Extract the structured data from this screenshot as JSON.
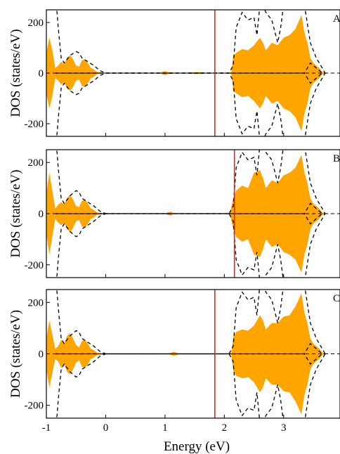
{
  "chart_data": {
    "type": "area",
    "xlabel": "Energy (eV)",
    "ylabel": "DOS (states/eV)",
    "xlim": [
      -1.0,
      3.95
    ],
    "ylim": [
      -250,
      250
    ],
    "x_ticks": [
      {
        "v": -1,
        "label": "-1"
      },
      {
        "v": 0,
        "label": "0"
      },
      {
        "v": 1,
        "label": "1"
      },
      {
        "v": 2,
        "label": "2"
      },
      {
        "v": 3,
        "label": "3"
      }
    ],
    "y_ticks": [
      {
        "v": 200,
        "label": "200"
      },
      {
        "v": 0,
        "label": "0"
      },
      {
        "v": -200,
        "label": "-200"
      }
    ],
    "colors": {
      "fill": "#ffa500",
      "dashed": "#000000",
      "fermi": "#d62728"
    },
    "panels": [
      {
        "label": "A",
        "fermi_level": 1.84,
        "dos_envelope": {
          "x": [
            -1.0,
            -0.95,
            -0.9,
            -0.85,
            -0.8,
            -0.75,
            -0.7,
            -0.65,
            -0.6,
            -0.55,
            -0.5,
            -0.45,
            -0.4,
            -0.35,
            -0.3,
            -0.25,
            -0.2,
            -0.15,
            -0.1,
            -0.05,
            0.0,
            0.9,
            0.95,
            1.0,
            1.05,
            1.2,
            1.5,
            1.6,
            1.7,
            2.08,
            2.12,
            2.15,
            2.2,
            2.3,
            2.4,
            2.5,
            2.6,
            2.65,
            2.7,
            2.8,
            2.9,
            3.0,
            3.1,
            3.2,
            3.3,
            3.35,
            3.4,
            3.45,
            3.5,
            3.55,
            3.6,
            3.65,
            3.7,
            3.95
          ],
          "y": [
            80,
            140,
            90,
            20,
            30,
            45,
            35,
            60,
            70,
            55,
            30,
            25,
            50,
            55,
            40,
            20,
            15,
            5,
            3,
            1,
            0,
            0,
            4,
            8,
            4,
            0,
            3,
            4,
            0,
            0,
            5,
            70,
            80,
            95,
            90,
            110,
            140,
            120,
            90,
            120,
            110,
            140,
            150,
            175,
            230,
            160,
            120,
            60,
            40,
            30,
            20,
            5,
            0,
            0
          ]
        },
        "dashed_curves": {
          "x": [
            -0.85,
            -0.82,
            -0.8,
            -0.75,
            -0.7,
            -0.6,
            -0.5,
            -0.45,
            -0.4,
            -0.3,
            -0.2,
            -0.1,
            0.0,
            2.08,
            2.15,
            2.2,
            2.3,
            2.4,
            2.5,
            2.55,
            2.6,
            2.65,
            2.7,
            2.8,
            2.9,
            2.95,
            3.0,
            3.1,
            3.2,
            3.3,
            3.35,
            3.45,
            3.55,
            3.6,
            3.65,
            3.7
          ],
          "outer": [
            270,
            240,
            180,
            60,
            40,
            70,
            85,
            80,
            60,
            45,
            30,
            10,
            0,
            0,
            30,
            180,
            240,
            210,
            220,
            150,
            270,
            270,
            240,
            210,
            120,
            180,
            270,
            270,
            270,
            270,
            270,
            120,
            60,
            40,
            20,
            0
          ],
          "inner": [
            0,
            0,
            0,
            0,
            0,
            0,
            0,
            0,
            0,
            0,
            0,
            0,
            0,
            0,
            0,
            0,
            0,
            0,
            0,
            0,
            0,
            0,
            0,
            0,
            0,
            0,
            0,
            0,
            0,
            0,
            0,
            40,
            20,
            10,
            0,
            0
          ]
        }
      },
      {
        "label": "B",
        "fermi_level": 2.17,
        "dos_envelope": {
          "x": [
            -1.0,
            -0.95,
            -0.9,
            -0.85,
            -0.8,
            -0.75,
            -0.7,
            -0.65,
            -0.6,
            -0.55,
            -0.5,
            -0.45,
            -0.4,
            -0.35,
            -0.3,
            -0.25,
            -0.2,
            -0.15,
            -0.1,
            -0.05,
            0.0,
            1.0,
            1.05,
            1.1,
            1.15,
            2.05,
            2.1,
            2.15,
            2.2,
            2.3,
            2.4,
            2.5,
            2.6,
            2.65,
            2.7,
            2.8,
            2.9,
            3.0,
            3.1,
            3.2,
            3.3,
            3.35,
            3.4,
            3.45,
            3.5,
            3.55,
            3.6,
            3.65,
            3.7,
            3.95
          ],
          "y": [
            80,
            160,
            90,
            20,
            35,
            45,
            35,
            60,
            75,
            55,
            30,
            25,
            50,
            55,
            40,
            20,
            15,
            5,
            3,
            1,
            0,
            0,
            5,
            8,
            0,
            0,
            5,
            60,
            90,
            110,
            100,
            160,
            170,
            140,
            100,
            130,
            120,
            150,
            160,
            180,
            230,
            160,
            120,
            60,
            40,
            30,
            20,
            5,
            0,
            0
          ]
        },
        "dashed_curves": {
          "x": [
            -0.85,
            -0.82,
            -0.8,
            -0.75,
            -0.7,
            -0.6,
            -0.5,
            -0.45,
            -0.4,
            -0.3,
            -0.2,
            -0.1,
            0.0,
            2.08,
            2.15,
            2.2,
            2.3,
            2.4,
            2.5,
            2.55,
            2.6,
            2.65,
            2.7,
            2.8,
            2.9,
            2.95,
            3.0,
            3.1,
            3.2,
            3.3,
            3.35,
            3.45,
            3.55,
            3.6,
            3.65,
            3.7
          ],
          "outer": [
            270,
            240,
            180,
            60,
            40,
            70,
            90,
            85,
            60,
            45,
            30,
            10,
            0,
            0,
            30,
            180,
            240,
            210,
            220,
            150,
            270,
            270,
            240,
            210,
            120,
            180,
            270,
            270,
            270,
            270,
            270,
            120,
            60,
            40,
            20,
            0
          ],
          "inner": [
            0,
            0,
            0,
            0,
            0,
            0,
            0,
            0,
            0,
            0,
            0,
            0,
            0,
            0,
            0,
            0,
            0,
            0,
            0,
            0,
            0,
            0,
            0,
            0,
            0,
            0,
            0,
            0,
            0,
            0,
            0,
            40,
            20,
            10,
            0,
            0
          ]
        }
      },
      {
        "label": "C",
        "fermi_level": 1.84,
        "dos_envelope": {
          "x": [
            -1.0,
            -0.95,
            -0.9,
            -0.85,
            -0.8,
            -0.75,
            -0.7,
            -0.65,
            -0.6,
            -0.55,
            -0.5,
            -0.45,
            -0.4,
            -0.35,
            -0.3,
            -0.25,
            -0.2,
            -0.15,
            -0.1,
            -0.05,
            0.0,
            1.05,
            1.15,
            1.25,
            2.08,
            2.12,
            2.15,
            2.2,
            2.3,
            2.4,
            2.5,
            2.6,
            2.65,
            2.7,
            2.8,
            2.9,
            3.0,
            3.1,
            3.2,
            3.3,
            3.35,
            3.4,
            3.45,
            3.5,
            3.55,
            3.6,
            3.65,
            3.7,
            3.95
          ],
          "y": [
            60,
            130,
            75,
            20,
            30,
            55,
            40,
            70,
            80,
            60,
            35,
            25,
            50,
            55,
            40,
            20,
            15,
            5,
            3,
            1,
            0,
            0,
            8,
            0,
            0,
            5,
            65,
            85,
            95,
            90,
            110,
            150,
            130,
            95,
            120,
            120,
            145,
            150,
            185,
            235,
            160,
            120,
            60,
            40,
            30,
            20,
            5,
            0,
            0
          ]
        },
        "dashed_curves": {
          "x": [
            -0.85,
            -0.82,
            -0.8,
            -0.75,
            -0.7,
            -0.6,
            -0.5,
            -0.45,
            -0.4,
            -0.3,
            -0.2,
            -0.1,
            0.0,
            2.08,
            2.15,
            2.2,
            2.3,
            2.4,
            2.5,
            2.55,
            2.6,
            2.65,
            2.7,
            2.8,
            2.9,
            2.95,
            3.0,
            3.1,
            3.2,
            3.3,
            3.35,
            3.45,
            3.55,
            3.6,
            3.65,
            3.7
          ],
          "outer": [
            270,
            240,
            180,
            60,
            40,
            70,
            90,
            85,
            60,
            45,
            30,
            10,
            0,
            0,
            30,
            180,
            240,
            210,
            220,
            150,
            270,
            270,
            240,
            210,
            120,
            180,
            270,
            270,
            270,
            270,
            270,
            120,
            60,
            40,
            20,
            0
          ],
          "inner": [
            0,
            0,
            0,
            0,
            0,
            0,
            0,
            0,
            0,
            0,
            0,
            0,
            0,
            0,
            0,
            0,
            0,
            0,
            0,
            0,
            0,
            0,
            0,
            0,
            0,
            0,
            0,
            0,
            0,
            0,
            0,
            40,
            20,
            10,
            0,
            0
          ]
        }
      }
    ]
  }
}
